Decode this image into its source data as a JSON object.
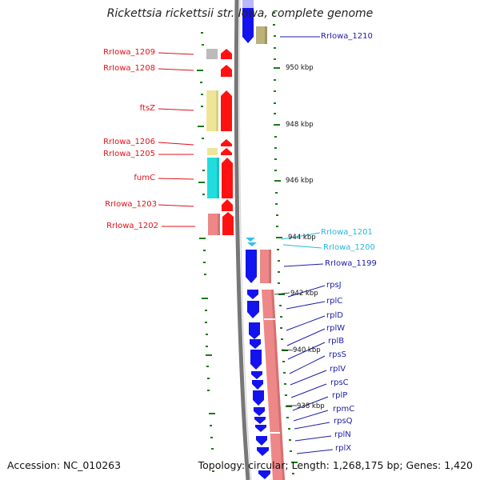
{
  "title": "Rickettsia rickettsii str. Iowa, complete genome",
  "accession_text": "Accession: NC_010263",
  "summary_text": "Topology: circular; Length: 1,268,175 bp; Genes: 1,420",
  "colors": {
    "forward_gene": "#ff1111",
    "reverse_gene": "#1313ee",
    "cds_pink": "#ee8888",
    "cds_yellow": "#eee599",
    "cds_cyan": "#22dddd",
    "cds_gray": "#bbbbbb",
    "cds_olive": "#bbb17a",
    "label_red": "#e0101a",
    "label_blue": "#1c1ca8",
    "label_cyan": "#27b8e0",
    "backbone": "#777777",
    "tick_green": "#1a7a1a"
  },
  "tick_labels": [
    {
      "id": "950",
      "text": "950 kbp"
    },
    {
      "id": "948",
      "text": "948 kbp"
    },
    {
      "id": "946",
      "text": "946 kbp"
    },
    {
      "id": "944",
      "text": "944 kbp"
    },
    {
      "id": "942",
      "text": "942 kbp"
    },
    {
      "id": "940",
      "text": "940 kbp"
    },
    {
      "id": "938",
      "text": "938 kbp"
    }
  ],
  "gene_labels": [
    {
      "id": "1210",
      "text": "RrIowa_1210",
      "strand": "reverse",
      "color": "blue"
    },
    {
      "id": "1209",
      "text": "RrIowa_1209",
      "strand": "forward",
      "color": "red"
    },
    {
      "id": "1208",
      "text": "RrIowa_1208",
      "strand": "forward",
      "color": "red"
    },
    {
      "id": "ftsZ",
      "text": "ftsZ",
      "strand": "forward",
      "color": "red"
    },
    {
      "id": "1206",
      "text": "RrIowa_1206",
      "strand": "forward",
      "color": "red"
    },
    {
      "id": "1205",
      "text": "RrIowa_1205",
      "strand": "forward",
      "color": "red"
    },
    {
      "id": "fumC",
      "text": "fumC",
      "strand": "forward",
      "color": "red"
    },
    {
      "id": "1203",
      "text": "RrIowa_1203",
      "strand": "forward",
      "color": "red"
    },
    {
      "id": "1202",
      "text": "RrIowa_1202",
      "strand": "forward",
      "color": "red"
    },
    {
      "id": "1201",
      "text": "RrIowa_1201",
      "strand": "reverse",
      "color": "cyan"
    },
    {
      "id": "1200",
      "text": "RrIowa_1200",
      "strand": "reverse",
      "color": "cyan"
    },
    {
      "id": "1199",
      "text": "RrIowa_1199",
      "strand": "reverse",
      "color": "blue"
    },
    {
      "id": "rpsJ",
      "text": "rpsJ",
      "strand": "reverse",
      "color": "blue"
    },
    {
      "id": "rplC",
      "text": "rplC",
      "strand": "reverse",
      "color": "blue"
    },
    {
      "id": "rplD",
      "text": "rplD",
      "strand": "reverse",
      "color": "blue"
    },
    {
      "id": "rplW",
      "text": "rplW",
      "strand": "reverse",
      "color": "blue"
    },
    {
      "id": "rplB",
      "text": "rplB",
      "strand": "reverse",
      "color": "blue"
    },
    {
      "id": "rpsS",
      "text": "rpsS",
      "strand": "reverse",
      "color": "blue"
    },
    {
      "id": "rplV",
      "text": "rplV",
      "strand": "reverse",
      "color": "blue"
    },
    {
      "id": "rpsC",
      "text": "rpsC",
      "strand": "reverse",
      "color": "blue"
    },
    {
      "id": "rplP",
      "text": "rplP",
      "strand": "reverse",
      "color": "blue"
    },
    {
      "id": "rpmC",
      "text": "rpmC",
      "strand": "reverse",
      "color": "blue"
    },
    {
      "id": "rpsQ",
      "text": "rpsQ",
      "strand": "reverse",
      "color": "blue"
    },
    {
      "id": "rplN",
      "text": "rplN",
      "strand": "reverse",
      "color": "blue"
    },
    {
      "id": "rplX",
      "text": "rplX",
      "strand": "reverse",
      "color": "blue"
    }
  ]
}
